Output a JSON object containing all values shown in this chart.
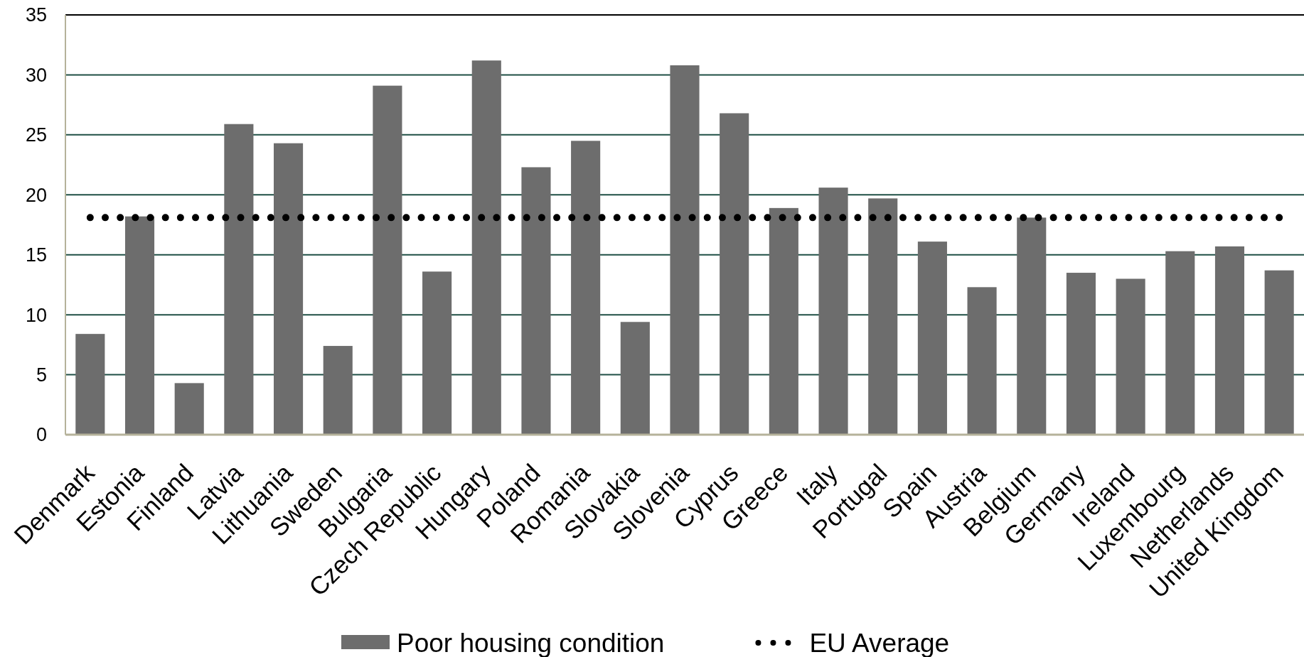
{
  "chart_data": {
    "type": "bar",
    "categories": [
      "Denmark",
      "Estonia",
      "Finland",
      "Latvia",
      "Lithuania",
      "Sweden",
      "Bulgaria",
      "Czech Republic",
      "Hungary",
      "Poland",
      "Romania",
      "Slovakia",
      "Slovenia",
      "Cyprus",
      "Greece",
      "Italy",
      "Portugal",
      "Spain",
      "Austria",
      "Belgium",
      "Germany",
      "Ireland",
      "Luxembourg",
      "Netherlands",
      "United Kingdom"
    ],
    "series": [
      {
        "name": "Poor housing condition",
        "color": "#6d6d6d",
        "values": [
          8.4,
          18.2,
          4.3,
          25.9,
          24.3,
          7.4,
          29.1,
          13.6,
          31.2,
          22.3,
          24.5,
          9.4,
          30.8,
          26.8,
          18.9,
          20.6,
          19.7,
          16.1,
          12.3,
          18.1,
          13.5,
          13.0,
          15.3,
          15.7,
          13.7
        ]
      },
      {
        "name": "EU Average",
        "type": "line",
        "color": "#000000",
        "line_style": "dotted",
        "values": [
          18.1,
          18.1,
          18.1,
          18.1,
          18.1,
          18.1,
          18.1,
          18.1,
          18.1,
          18.1,
          18.1,
          18.1,
          18.1,
          18.1,
          18.1,
          18.1,
          18.1,
          18.1,
          18.1,
          18.1,
          18.1,
          18.1,
          18.1,
          18.1,
          18.1
        ]
      }
    ],
    "ylim": [
      0,
      35
    ],
    "yticks": [
      0,
      5,
      10,
      15,
      20,
      25,
      30,
      35
    ],
    "grid": "y",
    "legend": "bottom"
  }
}
